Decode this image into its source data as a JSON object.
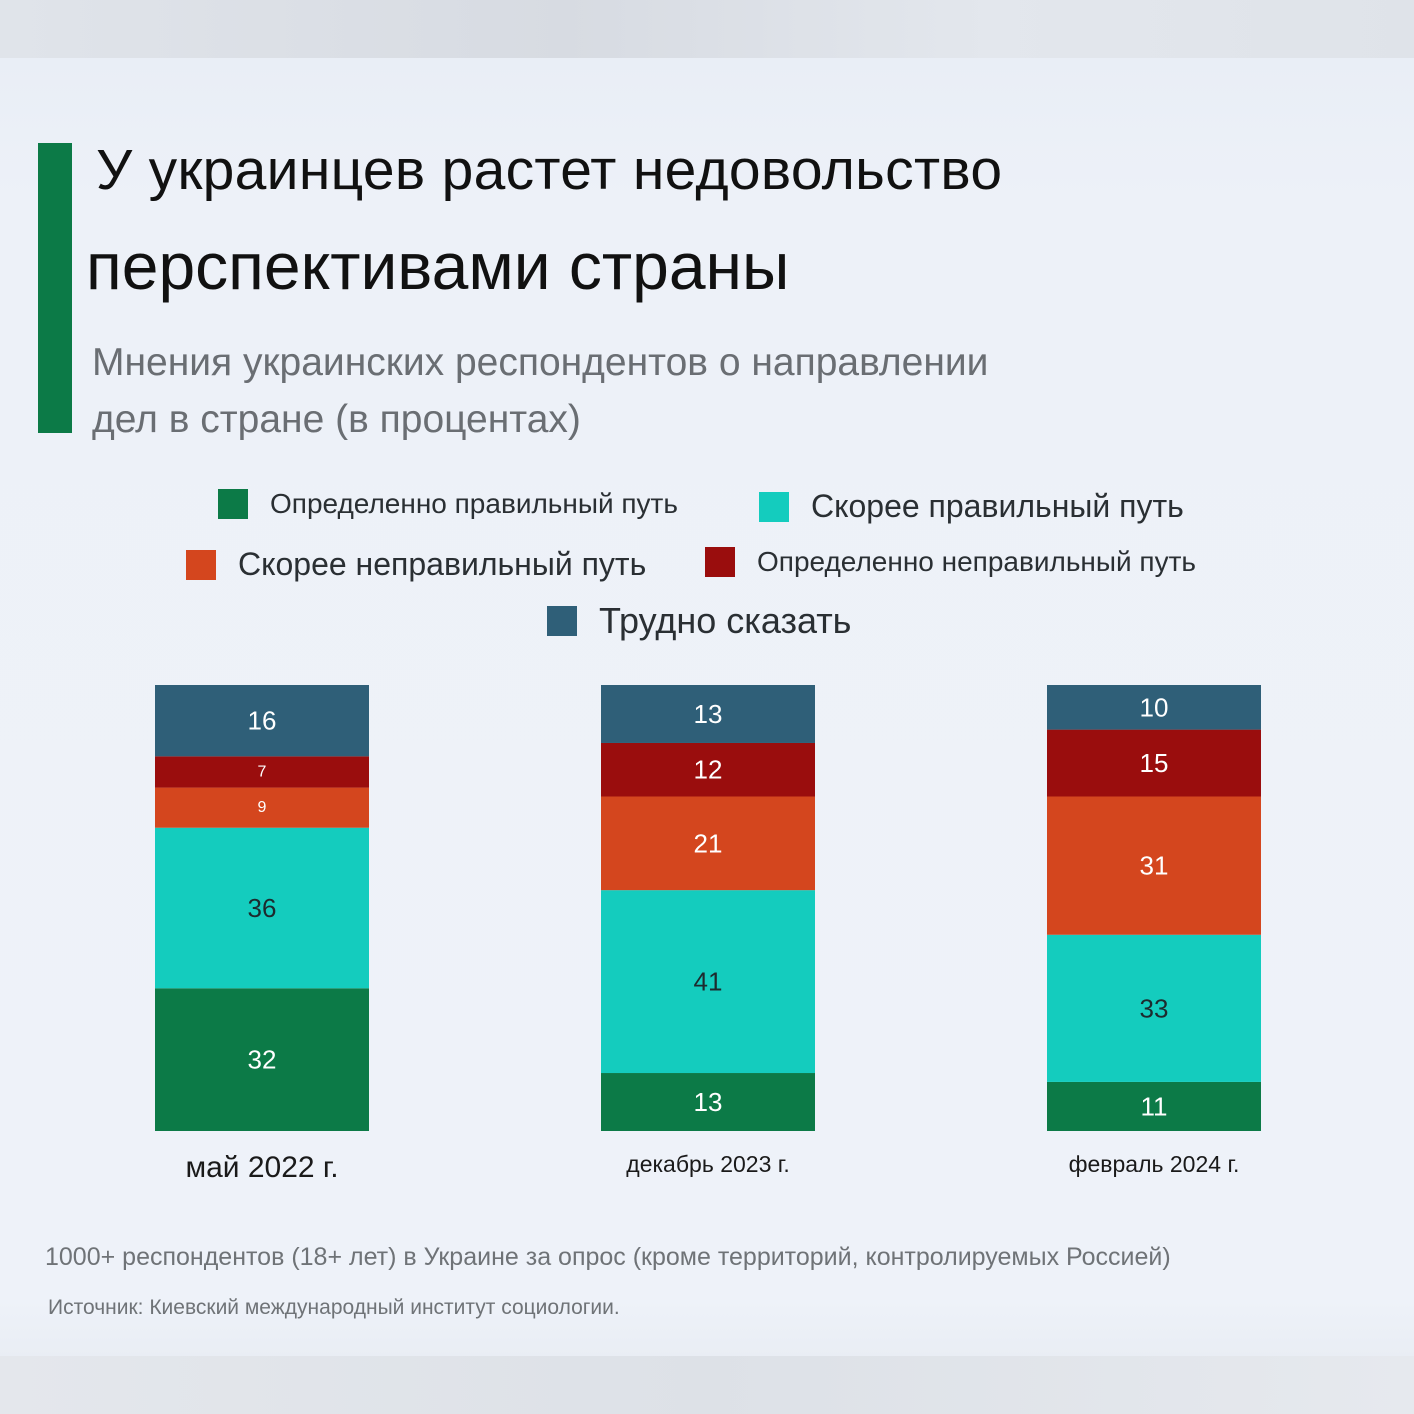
{
  "title_line1": "У украинцев растет недовольство",
  "title_line2": "перспективами страны",
  "subtitle_line1": "Мнения украинских респондентов о направлении",
  "subtitle_line2": "дел в стране (в процентах)",
  "colors": {
    "definitely_right": "#0c7a47",
    "rather_right": "#14ccbe",
    "rather_wrong": "#d4461e",
    "definitely_wrong": "#9a0d0d",
    "hard_to_say": "#2f5f78",
    "accent": "#0c7a47"
  },
  "legend": [
    {
      "key": "definitely_right",
      "label": "Определенно правильный путь"
    },
    {
      "key": "rather_right",
      "label": "Скорее правильный путь"
    },
    {
      "key": "rather_wrong",
      "label": "Скорее неправильный путь"
    },
    {
      "key": "definitely_wrong",
      "label": "Определенно неправильный путь"
    },
    {
      "key": "hard_to_say",
      "label": "Трудно сказать"
    }
  ],
  "chart_data": {
    "type": "bar",
    "stacked": true,
    "categories": [
      "май 2022 г.",
      "декабрь 2023 г.",
      "февраль 2024 г."
    ],
    "series": [
      {
        "key": "definitely_right",
        "name": "Определенно правильный путь",
        "values": [
          32,
          13,
          11
        ]
      },
      {
        "key": "rather_right",
        "name": "Скорее правильный путь",
        "values": [
          36,
          41,
          33
        ]
      },
      {
        "key": "rather_wrong",
        "name": "Скорее неправильный путь",
        "values": [
          9,
          21,
          31
        ]
      },
      {
        "key": "definitely_wrong",
        "name": "Определенно неправильный путь",
        "values": [
          7,
          12,
          15
        ]
      },
      {
        "key": "hard_to_say",
        "name": "Трудно сказать",
        "values": [
          16,
          13,
          10
        ]
      }
    ],
    "ylim": [
      0,
      100
    ],
    "unit": "%"
  },
  "footnote": "1000+ респондентов (18+ лет) в Украине за опрос (кроме территорий, контролируемых Россией)",
  "source": "Источник: Киевский международный институт социологии."
}
